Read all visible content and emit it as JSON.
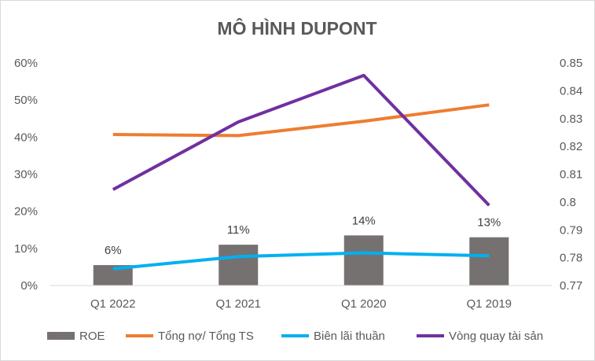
{
  "chart_data": {
    "type": "bar+line",
    "title": "MÔ HÌNH DUPONT",
    "categories": [
      "Q1 2022",
      "Q1 2021",
      "Q1 2020",
      "Q1 2019"
    ],
    "y_left": {
      "ticks": [
        "0%",
        "10%",
        "20%",
        "30%",
        "40%",
        "50%",
        "60%"
      ],
      "min": 0,
      "max": 0.6
    },
    "y_right": {
      "ticks": [
        "0.77",
        "0.78",
        "0.79",
        "0.8",
        "0.81",
        "0.82",
        "0.83",
        "0.84",
        "0.85"
      ],
      "min": 0.77,
      "max": 0.85
    },
    "grid": false,
    "legend_position": "bottom",
    "series": [
      {
        "name": "ROE",
        "type": "bar",
        "axis": "left",
        "color": "#767171",
        "values": [
          0.055,
          0.11,
          0.135,
          0.13
        ],
        "labels": [
          "6%",
          "11%",
          "14%",
          "13%"
        ]
      },
      {
        "name": "Tổng nợ/ Tổng TS",
        "type": "line",
        "axis": "left",
        "color": "#ED7D31",
        "values": [
          0.407,
          0.404,
          0.443,
          0.487
        ]
      },
      {
        "name": "Biên lãi thuần",
        "type": "line",
        "axis": "left",
        "color": "#00B0F0",
        "values": [
          0.045,
          0.078,
          0.088,
          0.08
        ]
      },
      {
        "name": "Vòng quay tài sản",
        "type": "line",
        "axis": "right",
        "color": "#7030A0",
        "values": [
          0.8045,
          0.8288,
          0.8455,
          0.7988
        ]
      }
    ]
  }
}
